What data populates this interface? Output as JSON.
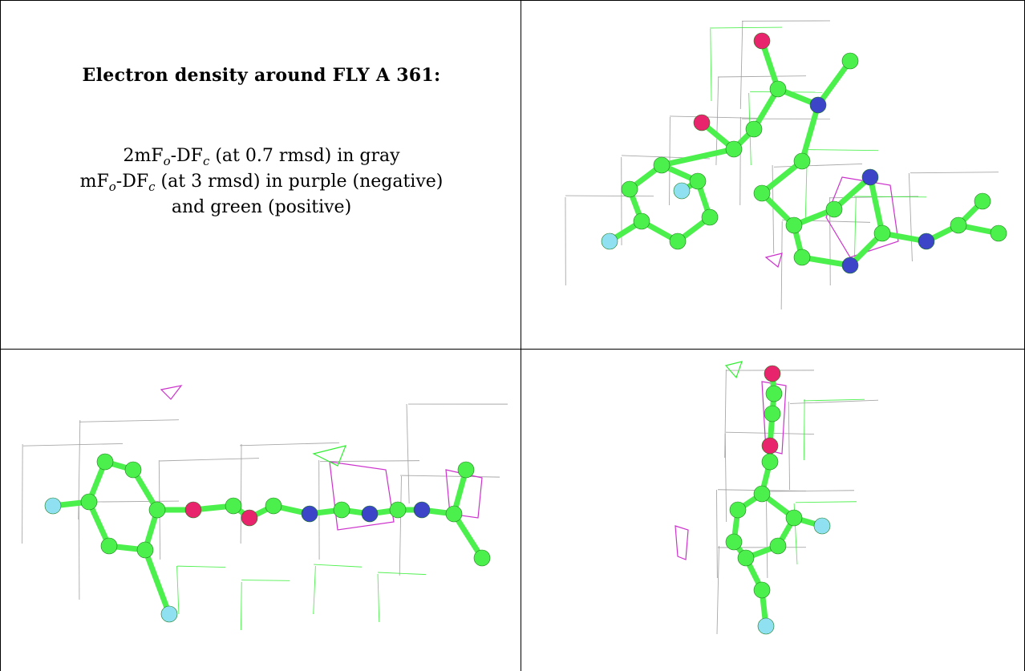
{
  "caption": {
    "title": "Electron density around FLY A 361:",
    "line1": {
      "a": "2mF",
      "sub1": "o",
      "b": "-DF",
      "sub2": "c",
      "c": " (at 0.7 rmsd) in gray"
    },
    "line2": {
      "a": "mF",
      "sub1": "o",
      "b": "-DF",
      "sub2": "c",
      "c": " (at 3 rmsd) in purple (negative)"
    },
    "line3": "and green (positive)"
  },
  "colors": {
    "carbon": "#4cf04c",
    "oxygen": "#e8246c",
    "nitrogen": "#3c44c8",
    "fluorine": "#8fe0f0",
    "mesh_gray": "#9a9a9a",
    "mesh_purple": "#cc33cc",
    "mesh_green": "#33ee33"
  }
}
